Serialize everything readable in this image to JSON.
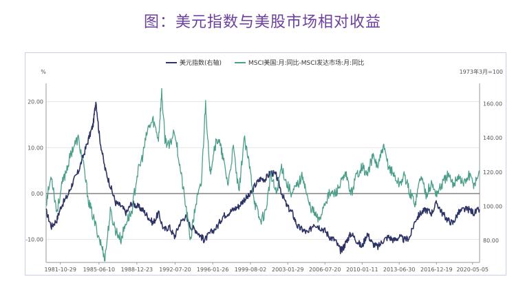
{
  "page_title": "图：美元指数与美股市场相对收益",
  "chart_data": {
    "type": "line",
    "title": "",
    "left_unit": "%",
    "right_unit": "1973年3月=100",
    "y_left_range": [
      -15,
      24
    ],
    "y_left_ticks": [
      "20.00",
      "10.00",
      "0.00",
      "-10.00"
    ],
    "y_left_tick_values": [
      20,
      10,
      0,
      -10
    ],
    "y_right_range": [
      67,
      172
    ],
    "y_right_ticks": [
      "160.00",
      "140.00",
      "120.00",
      "100.00",
      "80.00"
    ],
    "y_right_tick_values": [
      160,
      140,
      120,
      100,
      80
    ],
    "x_range": [
      1980.5,
      2021.0
    ],
    "x_ticks": [
      "1981-10-29",
      "1985-06-10",
      "1988-12-23",
      "1992-07-20",
      "1996-01-26",
      "1999-08-02",
      "2003-01-29",
      "2006-07-20",
      "2010-01-11",
      "2013-06-30",
      "2016-12-19",
      "2020-05-05"
    ],
    "x_tick_values": [
      1981.83,
      1985.44,
      1988.98,
      1992.55,
      1996.07,
      1999.59,
      2003.08,
      2006.55,
      2010.03,
      2013.49,
      2016.97,
      2020.34
    ],
    "legend_position": "top",
    "colors": {
      "dxy": "#2e3366",
      "msci": "#4a9e8a",
      "grid": "#e6e6e6",
      "zero": "#444444"
    },
    "series": [
      {
        "name": "美元指数(右轴)",
        "axis": "right",
        "x": [
          1980.5,
          1981.0,
          1981.5,
          1981.9,
          1982.5,
          1983.0,
          1983.5,
          1984.0,
          1984.5,
          1984.9,
          1985.15,
          1985.5,
          1986.0,
          1986.5,
          1987.0,
          1987.5,
          1988.0,
          1988.5,
          1989.0,
          1989.5,
          1990.0,
          1990.5,
          1991.0,
          1991.5,
          1992.0,
          1992.5,
          1993.0,
          1993.5,
          1994.0,
          1994.5,
          1995.0,
          1995.3,
          1995.8,
          1996.5,
          1997.0,
          1997.5,
          1998.0,
          1998.5,
          1999.0,
          1999.5,
          2000.0,
          2000.5,
          2001.0,
          2001.5,
          2002.0,
          2002.5,
          2003.0,
          2003.5,
          2004.0,
          2004.5,
          2005.0,
          2005.5,
          2006.0,
          2006.5,
          2007.0,
          2007.5,
          2008.0,
          2008.3,
          2008.6,
          2009.0,
          2009.5,
          2010.0,
          2010.5,
          2011.0,
          2011.5,
          2012.0,
          2012.5,
          2013.0,
          2013.5,
          2014.0,
          2014.5,
          2015.0,
          2015.5,
          2016.0,
          2016.5,
          2017.0,
          2017.5,
          2018.0,
          2018.5,
          2019.0,
          2019.5,
          2020.0,
          2020.5,
          2021.0
        ],
        "y": [
          97,
          88,
          92,
          100,
          106,
          114,
          120,
          130,
          140,
          148,
          162,
          140,
          122,
          112,
          102,
          100,
          96,
          102,
          100,
          98,
          94,
          90,
          96,
          86,
          88,
          82,
          90,
          94,
          88,
          86,
          82,
          80,
          84,
          88,
          94,
          96,
          98,
          100,
          104,
          106,
          112,
          116,
          116,
          120,
          118,
          108,
          100,
          96,
          88,
          86,
          84,
          90,
          88,
          86,
          82,
          80,
          74,
          76,
          80,
          84,
          80,
          76,
          84,
          78,
          76,
          80,
          82,
          80,
          82,
          80,
          82,
          92,
          96,
          98,
          96,
          102,
          96,
          92,
          90,
          96,
          98,
          98,
          96,
          98
        ]
      },
      {
        "name": "MSCI美国:月:同比-MSCI发达市场:月:同比",
        "axis": "left",
        "x": [
          1980.5,
          1981.0,
          1981.5,
          1982.0,
          1982.5,
          1983.0,
          1983.5,
          1984.0,
          1984.5,
          1985.0,
          1985.5,
          1986.0,
          1986.5,
          1987.0,
          1987.5,
          1988.0,
          1988.5,
          1989.0,
          1989.5,
          1990.0,
          1990.5,
          1991.0,
          1991.3,
          1991.6,
          1992.0,
          1992.5,
          1993.0,
          1993.5,
          1994.0,
          1994.5,
          1995.0,
          1995.4,
          1995.8,
          1996.2,
          1996.6,
          1997.0,
          1997.5,
          1998.0,
          1998.5,
          1999.0,
          1999.5,
          2000.0,
          2000.5,
          2001.0,
          2001.5,
          2002.0,
          2002.5,
          2003.0,
          2003.5,
          2004.0,
          2004.5,
          2005.0,
          2005.5,
          2006.0,
          2006.5,
          2007.0,
          2007.5,
          2008.0,
          2008.5,
          2009.0,
          2009.5,
          2010.0,
          2010.5,
          2011.0,
          2011.5,
          2012.0,
          2012.5,
          2013.0,
          2013.5,
          2014.0,
          2014.5,
          2015.0,
          2015.5,
          2016.0,
          2016.5,
          2017.0,
          2017.5,
          2018.0,
          2018.5,
          2019.0,
          2019.5,
          2020.0,
          2020.5,
          2021.0
        ],
        "y": [
          -2,
          4,
          -4,
          2,
          6,
          10,
          12,
          6,
          -2,
          -6,
          -10,
          -14,
          -4,
          -8,
          -10,
          -6,
          -4,
          4,
          8,
          14,
          16,
          12,
          22,
          12,
          10,
          14,
          6,
          -2,
          -10,
          -2,
          2,
          20,
          4,
          10,
          12,
          8,
          2,
          10,
          0,
          12,
          6,
          -2,
          -6,
          -4,
          4,
          0,
          6,
          2,
          0,
          2,
          4,
          -2,
          -4,
          -6,
          -2,
          0,
          0,
          2,
          4,
          0,
          4,
          6,
          4,
          8,
          6,
          10,
          6,
          4,
          2,
          4,
          0,
          -2,
          4,
          0,
          2,
          0,
          2,
          4,
          2,
          4,
          2,
          4,
          2,
          5
        ]
      }
    ]
  }
}
